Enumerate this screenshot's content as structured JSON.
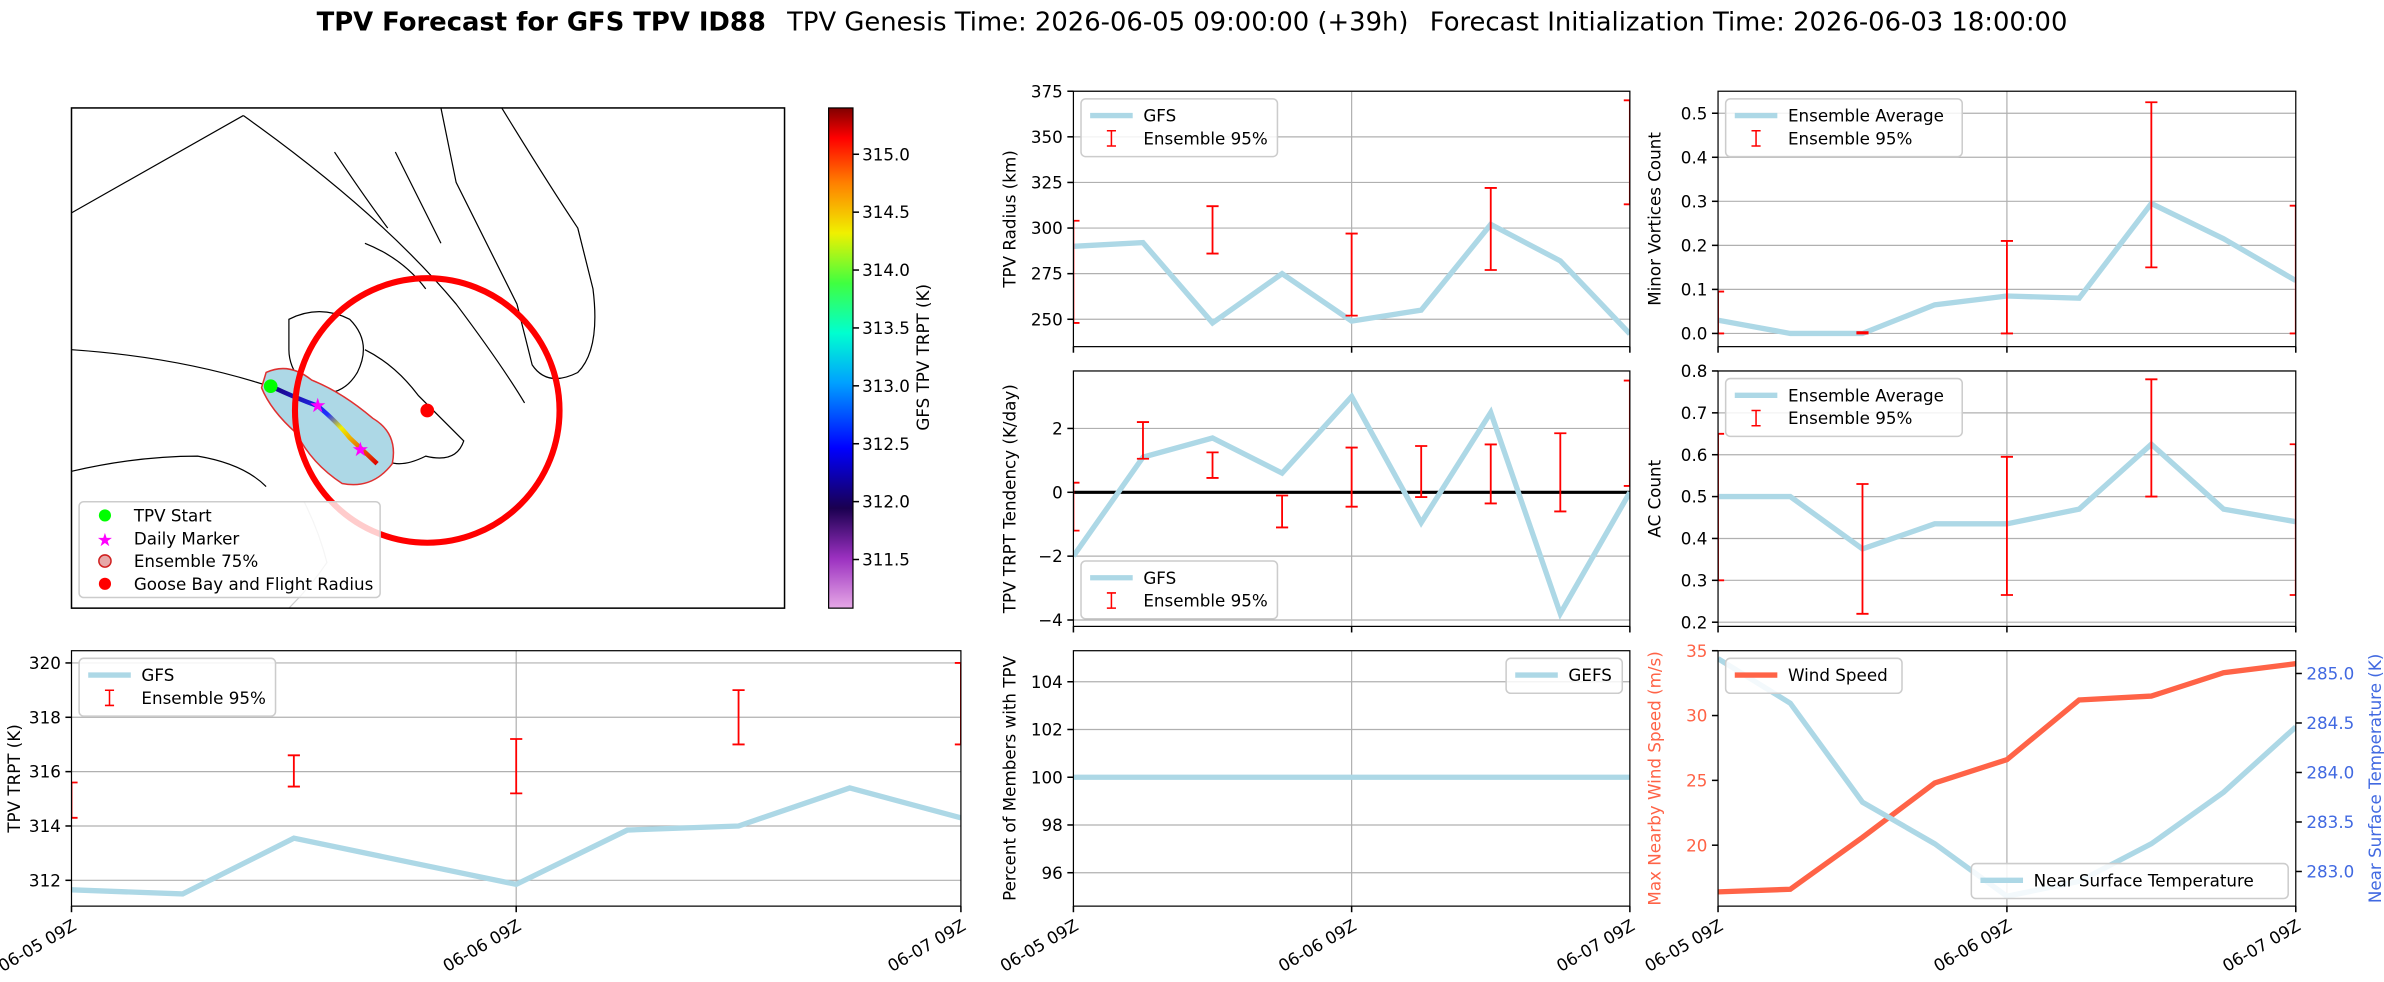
{
  "figure": {
    "title": "TPV Forecast for GFS TPV ID88",
    "genesis": "TPV Genesis Time: 2026-06-05 09:00:00 (+39h)",
    "init": "Forecast Initialization Time: 2026-06-03 18:00:00"
  },
  "chart_data": [
    {
      "type": "map",
      "legend": [
        "TPV Start",
        "Daily Marker",
        "Ensemble 75%",
        "Goose Bay and Flight Radius"
      ],
      "colorbar": {
        "label": "GFS TPV TRPT (K)",
        "clim": [
          311.08,
          315.4
        ],
        "ticks": [
          311.5,
          {
            "value": 312,
            "label": "312.0"
          },
          312.5,
          {
            "value": 313,
            "label": "313.0"
          },
          313.5,
          {
            "value": 314,
            "label": "314.0"
          },
          314.5,
          {
            "value": 315,
            "label": "315.0"
          }
        ]
      }
    },
    {
      "type": "line",
      "ylabel": "TPV Radius (km)",
      "ylim": [
        235,
        375
      ],
      "yticks": [
        250,
        275,
        300,
        325,
        350,
        375
      ],
      "grid": true,
      "legend": "upper left",
      "series": [
        {
          "name": "GFS",
          "type": "line",
          "color": "#add8e6",
          "values": [
            290,
            292,
            248,
            275,
            249,
            255,
            302,
            282,
            242
          ]
        },
        {
          "name": "Ensemble 95%",
          "type": "errorbar",
          "color": "#ff0000",
          "low": [
            248,
            null,
            286,
            null,
            252,
            null,
            277,
            null,
            313
          ],
          "high": [
            304,
            null,
            312,
            null,
            297,
            null,
            322,
            null,
            370
          ]
        }
      ]
    },
    {
      "type": "line",
      "ylabel": "Minor Vortices Count",
      "ylim": [
        -0.03,
        0.55
      ],
      "yticks": [
        {
          "value": 0,
          "label": "0.0"
        },
        0.1,
        0.2,
        0.3,
        0.4,
        0.5
      ],
      "grid": true,
      "legend": "upper left",
      "series": [
        {
          "name": "Ensemble Average",
          "type": "line",
          "color": "#add8e6",
          "values": [
            0.03,
            0,
            0,
            0.065,
            0.085,
            0.08,
            0.295,
            0.215,
            0.12
          ]
        },
        {
          "name": "Ensemble 95%",
          "type": "errorbar",
          "color": "#ff0000",
          "low": [
            0,
            null,
            0,
            null,
            0,
            null,
            0.15,
            null,
            0
          ],
          "high": [
            0.095,
            null,
            0.003,
            null,
            0.21,
            null,
            0.525,
            null,
            0.29
          ]
        }
      ]
    },
    {
      "type": "line",
      "ylabel": "TPV TRPT Tendency (K/day)",
      "ylim": [
        -4.2,
        3.8
      ],
      "yticks": [
        {
          "value": -4,
          "label": "−4"
        },
        {
          "value": -2,
          "label": "−2"
        },
        0,
        2
      ],
      "grid": true,
      "legend": "lower left",
      "reference_line": {
        "value": 0,
        "color": "#000000"
      },
      "series": [
        {
          "name": "GFS",
          "type": "line",
          "color": "#add8e6",
          "values": [
            -2,
            1.1,
            1.7,
            0.6,
            3,
            -0.95,
            2.5,
            -3.8,
            0
          ]
        },
        {
          "name": "Ensemble 95%",
          "type": "errorbar",
          "color": "#ff0000",
          "low": [
            -1.2,
            1.05,
            0.45,
            -1.1,
            -0.45,
            -0.15,
            -0.35,
            -0.6,
            0.2
          ],
          "high": [
            0.3,
            2.2,
            1.25,
            -0.1,
            1.4,
            1.45,
            1.5,
            1.85,
            3.5
          ]
        }
      ]
    },
    {
      "type": "line",
      "ylabel": "AC Count",
      "ylim": [
        0.19,
        0.8
      ],
      "yticks": [
        0.2,
        0.3,
        0.4,
        0.5,
        0.6,
        0.7,
        0.8
      ],
      "grid": true,
      "legend": "upper left",
      "series": [
        {
          "name": "Ensemble Average",
          "type": "line",
          "color": "#add8e6",
          "values": [
            0.5,
            0.5,
            0.375,
            0.435,
            0.435,
            0.47,
            0.625,
            0.47,
            0.44
          ]
        },
        {
          "name": "Ensemble 95%",
          "type": "errorbar",
          "color": "#ff0000",
          "low": [
            0.3,
            null,
            0.22,
            null,
            0.265,
            null,
            0.5,
            null,
            0.265
          ],
          "high": [
            0.65,
            null,
            0.53,
            null,
            0.595,
            null,
            0.78,
            null,
            0.625
          ]
        }
      ]
    },
    {
      "type": "line",
      "ylabel": "TPV TRPT (K)",
      "categories": [
        "06-05 09Z",
        null,
        null,
        null,
        "06-06 09Z",
        null,
        null,
        null,
        "06-07 09Z"
      ],
      "ylim": [
        311.05,
        320.45
      ],
      "yticks": [
        312,
        314,
        316,
        318,
        320
      ],
      "grid": true,
      "legend": "upper left",
      "series": [
        {
          "name": "GFS",
          "type": "line",
          "color": "#add8e6",
          "values": [
            311.65,
            311.5,
            313.55,
            312.7,
            311.85,
            313.85,
            314,
            315.4,
            314.3
          ]
        },
        {
          "name": "Ensemble 95%",
          "type": "errorbar",
          "color": "#ff0000",
          "low": [
            314.3,
            null,
            315.45,
            null,
            315.2,
            null,
            317,
            null,
            317
          ],
          "high": [
            315.6,
            null,
            316.6,
            null,
            317.2,
            null,
            319,
            null,
            320
          ]
        }
      ]
    },
    {
      "type": "line",
      "ylabel": "Percent of Members with TPV",
      "categories": [
        "06-05 09Z",
        null,
        null,
        null,
        "06-06 09Z",
        null,
        null,
        null,
        "06-07 09Z"
      ],
      "ylim": [
        94.6,
        105.3
      ],
      "yticks": [
        96,
        98,
        100,
        102,
        104
      ],
      "grid": true,
      "legend": "upper right",
      "series": [
        {
          "name": "GEFS",
          "type": "line",
          "color": "#add8e6",
          "values": [
            100,
            100,
            100,
            100,
            100,
            100,
            100,
            100,
            100
          ]
        }
      ]
    },
    {
      "type": "line",
      "ylabel": "Max Nearby Wind Speed (m/s)",
      "ylabel_color": "#ff6347",
      "y2label": "Near Surface Temperature (K)",
      "y2label_color": "#4169e1",
      "categories": [
        "06-05 09Z",
        null,
        null,
        null,
        "06-06 09Z",
        null,
        null,
        null,
        "06-07 09Z"
      ],
      "ylim": [
        15.3,
        35
      ],
      "yticks": [
        20,
        25,
        30,
        35
      ],
      "y2lim": [
        282.65,
        285.23
      ],
      "y2ticks": [
        {
          "value": 283,
          "label": "283.0"
        },
        283.5,
        {
          "value": 284,
          "label": "284.0"
        },
        284.5,
        {
          "value": 285,
          "label": "285.0"
        }
      ],
      "grid": "x",
      "legend": "upper left",
      "legend2": "lower right",
      "series": [
        {
          "name": "Wind Speed",
          "type": "line",
          "color": "#ff6347",
          "values": [
            16.4,
            16.6,
            20.6,
            24.8,
            26.6,
            31.2,
            31.5,
            33.3,
            34
          ]
        },
        {
          "name": "Near Surface Temperature",
          "type": "line",
          "axis": "y2",
          "color": "#add8e6",
          "values": [
            285.15,
            284.7,
            283.7,
            283.28,
            282.75,
            282.9,
            283.28,
            283.8,
            284.46
          ]
        }
      ]
    }
  ]
}
